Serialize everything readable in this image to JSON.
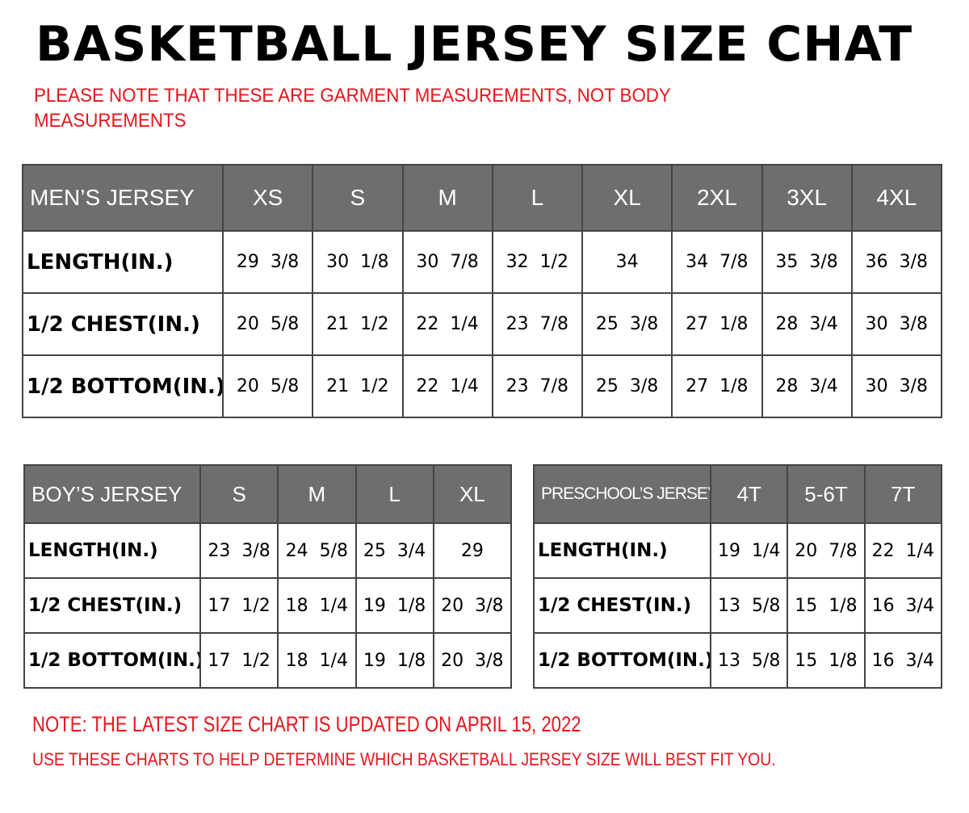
{
  "title": "BASKETBALL JERSEY SIZE CHAT",
  "subtitle": [
    "PLEASE NOTE THAT THESE ARE GARMENT MEASUREMENTS, NOT BODY",
    "MEASUREMENTS"
  ],
  "colors": {
    "header_bg": "#6e6e6e",
    "note_red": "#e8141c"
  },
  "mens": {
    "header": "MEN’S JERSEY",
    "sizes": [
      "XS",
      "S",
      "M",
      "L",
      "XL",
      "2XL",
      "3XL",
      "4XL"
    ],
    "rows": [
      {
        "label": "LENGTH(IN.)",
        "values": [
          "29  3/8",
          "30  1/8",
          "30  7/8",
          "32  1/2",
          "34",
          "34  7/8",
          "35  3/8",
          "36  3/8"
        ]
      },
      {
        "label": "1/2  CHEST(IN.)",
        "values": [
          "20  5/8",
          "21  1/2",
          "22  1/4",
          "23  7/8",
          "25  3/8",
          "27  1/8",
          "28  3/4",
          "30  3/8"
        ]
      },
      {
        "label": "1/2  BOTTOM(IN.)",
        "values": [
          "20  5/8",
          "21  1/2",
          "22  1/4",
          "23  7/8",
          "25  3/8",
          "27  1/8",
          "28  3/4",
          "30  3/8"
        ]
      }
    ]
  },
  "boys": {
    "header": "BOY’S JERSEY",
    "sizes": [
      "S",
      "M",
      "L",
      "XL"
    ],
    "rows": [
      {
        "label": "LENGTH(IN.)",
        "values": [
          "23  3/8",
          "24  5/8",
          "25  3/4",
          "29"
        ]
      },
      {
        "label": "1/2  CHEST(IN.)",
        "values": [
          "17  1/2",
          "18  1/4",
          "19  1/8",
          "20  3/8"
        ]
      },
      {
        "label": "1/2  BOTTOM(IN.)",
        "values": [
          "17  1/2",
          "18  1/4",
          "19  1/8",
          "20  3/8"
        ]
      }
    ]
  },
  "preschool": {
    "header": "PRESCHOOL’S JERSEY",
    "sizes": [
      "4T",
      "5-6T",
      "7T"
    ],
    "rows": [
      {
        "label": "LENGTH(IN.)",
        "values": [
          "19  1/4",
          "20  7/8",
          "22  1/4"
        ]
      },
      {
        "label": "1/2  CHEST(IN.)",
        "values": [
          "13  5/8",
          "15  1/8",
          "16  3/4"
        ]
      },
      {
        "label": "1/2  BOTTOM(IN.)",
        "values": [
          "13  5/8",
          "15  1/8",
          "16  3/4"
        ]
      }
    ]
  },
  "notes": [
    "NOTE: THE LATEST SIZE CHART IS UPDATED ON APRIL 15, 2022",
    "USE THESE CHARTS TO HELP DETERMINE WHICH  BASKETBALL JERSEY  SIZE WILL BEST FIT YOU."
  ]
}
